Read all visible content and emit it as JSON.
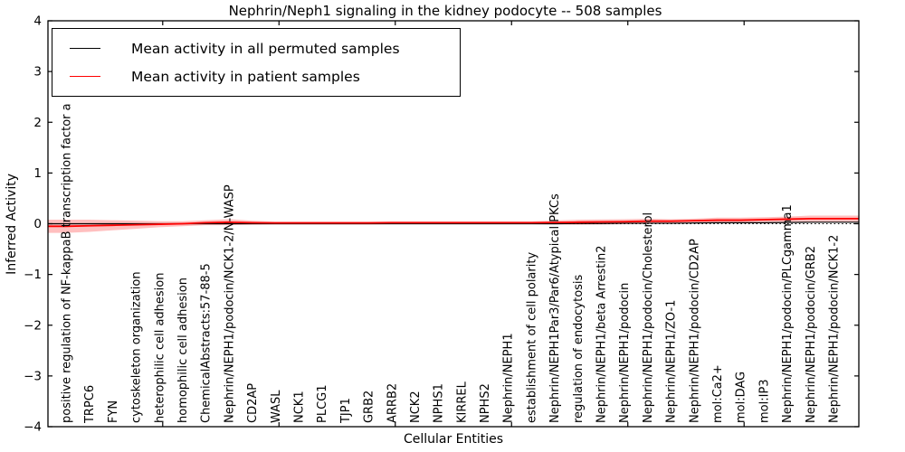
{
  "title": "Nephrin/Neph1 signaling in the kidney podocyte -- 508 samples",
  "legend": {
    "entries": [
      {
        "label": "Mean activity in all permuted samples",
        "color": "#000000"
      },
      {
        "label": "Mean activity in patient samples",
        "color": "#ff0000"
      }
    ]
  },
  "axes": {
    "ylabel": "Inferred Activity",
    "xlabel": "Cellular Entities",
    "ytick_labels": [
      "4",
      "3",
      "2",
      "1",
      "0",
      "−1",
      "−2",
      "−3",
      "−4"
    ]
  },
  "chart_data": {
    "type": "line",
    "title": "Nephrin/Neph1 signaling in the kidney podocyte -- 508 samples",
    "xlabel": "Cellular Entities",
    "ylabel": "Inferred Activity",
    "ylim": [
      -4,
      4
    ],
    "yticks": [
      4,
      3,
      2,
      1,
      0,
      -1,
      -2,
      -3,
      -4
    ],
    "grid": false,
    "zero_reference_line": {
      "style": "dotted",
      "color": "#000000",
      "y": 0
    },
    "legend_position": "upper left",
    "categories": [
      "positive regulation of NF-kappaB transcription factor a",
      "TRPC6",
      "FYN",
      "cytoskeleton organization",
      "heterophilic cell adhesion",
      "homophilic cell adhesion",
      "ChemicalAbstracts:57-88-5",
      "Nephrin/NEPH1/podocin/NCK1-2/N-WASP",
      "CD2AP",
      "WASL",
      "NCK1",
      "PLCG1",
      "TJP1",
      "GRB2",
      "ARRB2",
      "NCK2",
      "NPHS1",
      "KIRREL",
      "NPHS2",
      "Nephrin/NEPH1",
      "establishment of cell polarity",
      "Nephrin/NEPH1Par3/Par6/Atypical PKCs",
      "regulation of endocytosis",
      "Nephrin/NEPH1/beta Arrestin2",
      "Nephrin/NEPH1/podocin",
      "Nephrin/NEPH1/podocin/Cholesterol",
      "Nephrin/NEPH1/ZO-1",
      "Nephrin/NEPH1/podocin/CD2AP",
      "mol:Ca2+",
      "mol:DAG",
      "mol:IP3",
      "Nephrin/NEPH1/podocin/PLCgamma1",
      "Nephrin/NEPH1/podocin/GRB2",
      "Nephrin/NEPH1/podocin/NCK1-2"
    ],
    "series": [
      {
        "name": "Mean activity in all permuted samples",
        "color": "#000000",
        "values": [
          0,
          0,
          0,
          0,
          0,
          0,
          0,
          0,
          0,
          0,
          0,
          0,
          0,
          0,
          0,
          0,
          0,
          0,
          0,
          0,
          0,
          0,
          0.005,
          0.005,
          0.01,
          0.01,
          0.01,
          0.015,
          0.02,
          0.02,
          0.02,
          0.025,
          0.03,
          0.03
        ]
      },
      {
        "name": "Mean activity in patient samples",
        "color": "#ff0000",
        "values": [
          -0.05,
          -0.04,
          -0.03,
          -0.02,
          -0.01,
          0,
          0.02,
          0.03,
          0.02,
          0.015,
          0.015,
          0.015,
          0.015,
          0.015,
          0.02,
          0.02,
          0.02,
          0.02,
          0.02,
          0.02,
          0.02,
          0.025,
          0.03,
          0.035,
          0.04,
          0.05,
          0.05,
          0.06,
          0.07,
          0.07,
          0.08,
          0.09,
          0.1,
          0.1
        ]
      }
    ],
    "band": {
      "series": "Mean activity in patient samples",
      "color": "rgba(255,0,0,0.25)",
      "upper": [
        0.08,
        0.08,
        0.07,
        0.06,
        0.05,
        0.05,
        0.07,
        0.09,
        0.06,
        0.045,
        0.045,
        0.045,
        0.045,
        0.045,
        0.05,
        0.05,
        0.05,
        0.05,
        0.05,
        0.05,
        0.05,
        0.065,
        0.08,
        0.085,
        0.09,
        0.1,
        0.09,
        0.1,
        0.12,
        0.12,
        0.13,
        0.14,
        0.16,
        0.16
      ],
      "lower": [
        -0.18,
        -0.16,
        -0.13,
        -0.1,
        -0.07,
        -0.05,
        -0.03,
        -0.03,
        -0.02,
        -0.015,
        -0.015,
        -0.015,
        -0.015,
        -0.015,
        -0.01,
        -0.01,
        -0.01,
        -0.01,
        -0.01,
        -0.01,
        -0.01,
        -0.015,
        -0.02,
        -0.015,
        -0.01,
        0.0,
        0.01,
        0.02,
        0.02,
        0.02,
        0.03,
        0.04,
        0.04,
        0.04
      ]
    }
  }
}
